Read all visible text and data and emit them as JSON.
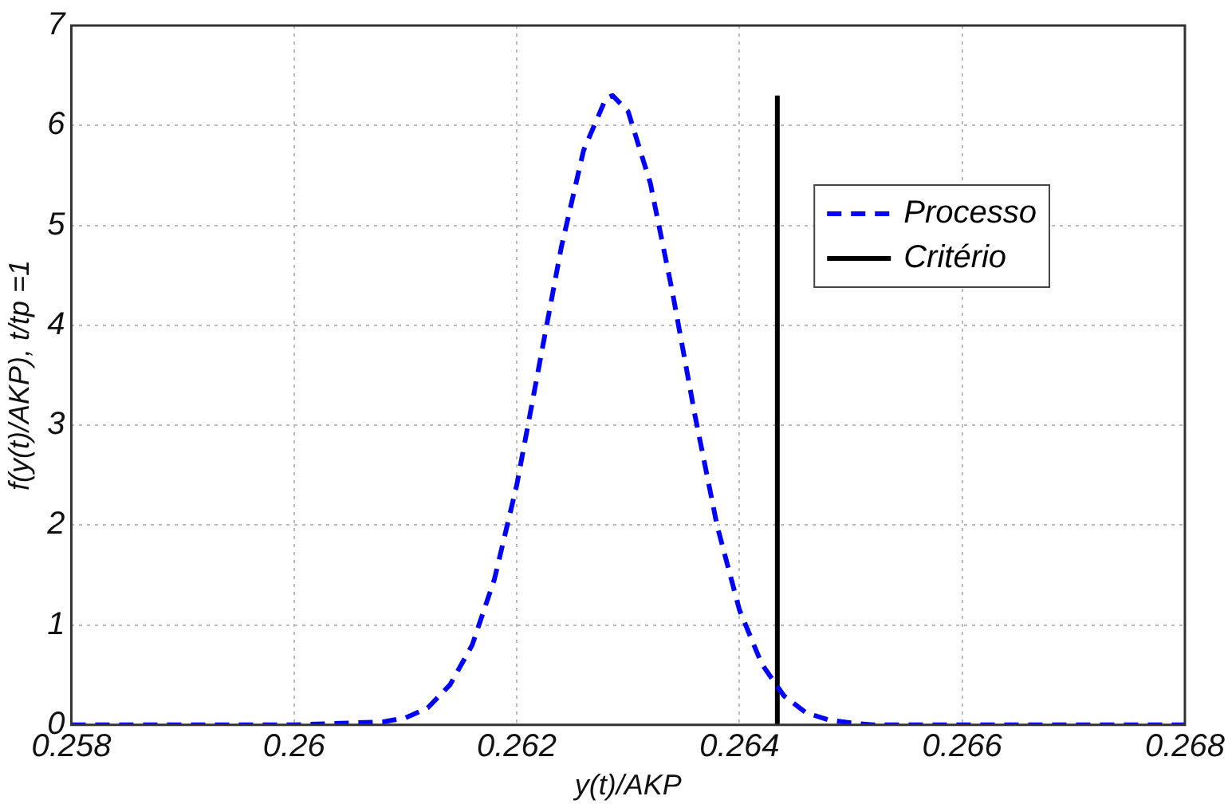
{
  "chart_data": {
    "type": "line",
    "xlabel": "y(t)/AKP",
    "ylabel": "f(y(t)/AKP), t/tp =1",
    "xlim": [
      0.258,
      0.268
    ],
    "xticks": [
      0.258,
      0.26,
      0.262,
      0.264,
      0.266,
      0.268
    ],
    "ylim": [
      0,
      7
    ],
    "yticks": [
      0,
      1,
      2,
      3,
      4,
      5,
      6,
      7
    ],
    "grid": true,
    "legend": "top right",
    "series": [
      {
        "name": "Processo",
        "color": "#0000ff",
        "line_style": "dashed",
        "x": [
          0.258,
          0.259,
          0.26,
          0.2608,
          0.261,
          0.2612,
          0.2614,
          0.2616,
          0.2618,
          0.262,
          0.2622,
          0.2624,
          0.2626,
          0.2628,
          0.26286,
          0.263,
          0.2632,
          0.2634,
          0.2636,
          0.2638,
          0.264,
          0.2642,
          0.2644,
          0.2646,
          0.2648,
          0.265,
          0.2652,
          0.266,
          0.267,
          0.268
        ],
        "values": [
          0,
          0,
          0,
          0.03,
          0.07,
          0.17,
          0.4,
          0.8,
          1.46,
          2.4,
          3.59,
          4.78,
          5.75,
          6.27,
          6.3,
          6.14,
          5.42,
          4.32,
          3.1,
          1.99,
          1.15,
          0.61,
          0.29,
          0.12,
          0.05,
          0.02,
          0,
          0,
          0,
          0
        ]
      },
      {
        "name": "Critério",
        "color": "#000000",
        "line_style": "solid",
        "x": [
          0.26434,
          0.26434
        ],
        "values": [
          0,
          6.3
        ]
      }
    ]
  }
}
